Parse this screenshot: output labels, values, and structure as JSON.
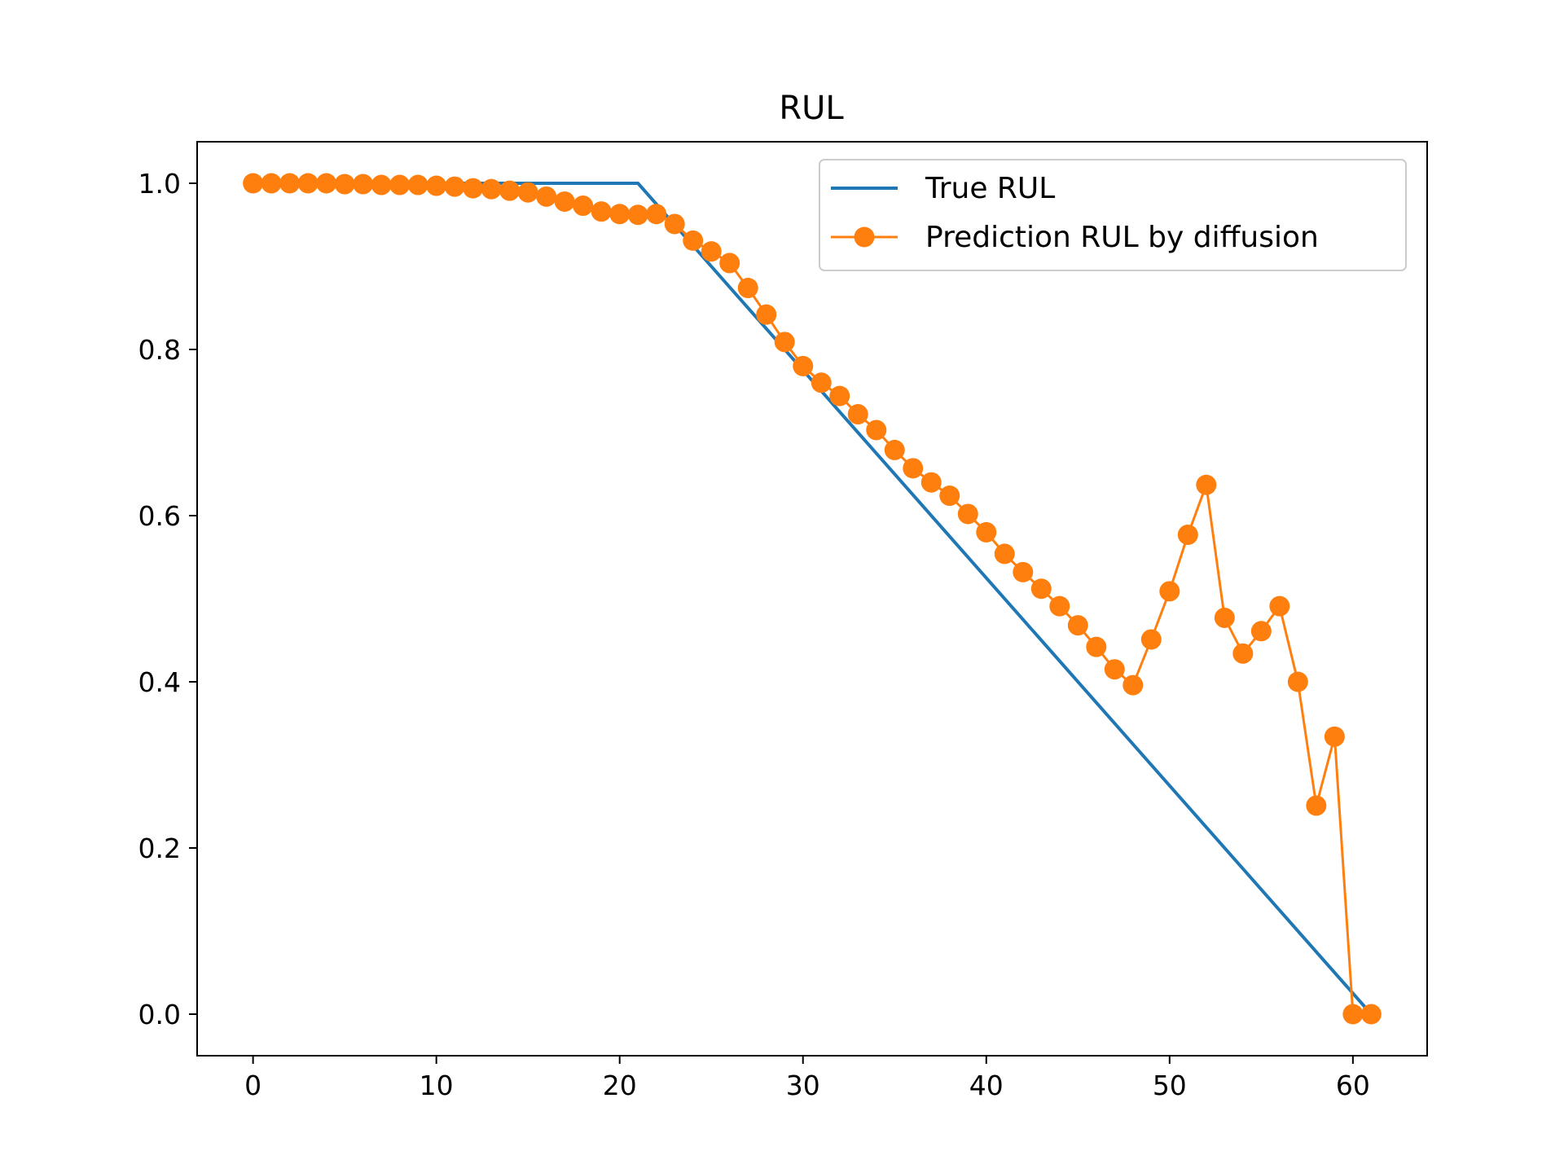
{
  "chart_data": {
    "type": "line",
    "title": "RUL",
    "xlabel": "",
    "ylabel": "",
    "xlim": [
      -3.05,
      64.05
    ],
    "ylim": [
      -0.05,
      1.05
    ],
    "xticks": [
      0,
      10,
      20,
      30,
      40,
      50,
      60
    ],
    "yticks": [
      0.0,
      0.2,
      0.4,
      0.6,
      0.8,
      1.0
    ],
    "xtick_labels": [
      "0",
      "10",
      "20",
      "30",
      "40",
      "50",
      "60"
    ],
    "ytick_labels": [
      "0.0",
      "0.2",
      "0.4",
      "0.6",
      "0.8",
      "1.0"
    ],
    "grid": false,
    "legend_position": "top-right",
    "series": [
      {
        "name": "True RUL",
        "color": "#1f77b4",
        "marker": "none",
        "x": [
          0,
          21,
          61
        ],
        "y": [
          1.0,
          1.0,
          0.0
        ]
      },
      {
        "name": "Prediction RUL by diffusion",
        "color": "#ff7f0e",
        "marker": "circle",
        "x": [
          0,
          1,
          2,
          3,
          4,
          5,
          6,
          7,
          8,
          9,
          10,
          11,
          12,
          13,
          14,
          15,
          16,
          17,
          18,
          19,
          20,
          21,
          22,
          23,
          24,
          25,
          26,
          27,
          28,
          29,
          30,
          31,
          32,
          33,
          34,
          35,
          36,
          37,
          38,
          39,
          40,
          41,
          42,
          43,
          44,
          45,
          46,
          47,
          48,
          49,
          50,
          51,
          52,
          53,
          54,
          55,
          56,
          57,
          58,
          59,
          60,
          61
        ],
        "y": [
          1.0,
          1.0,
          1.0,
          1.0,
          1.0,
          0.999,
          0.999,
          0.998,
          0.998,
          0.998,
          0.997,
          0.996,
          0.994,
          0.993,
          0.991,
          0.989,
          0.984,
          0.978,
          0.973,
          0.966,
          0.963,
          0.962,
          0.963,
          0.951,
          0.931,
          0.918,
          0.904,
          0.874,
          0.842,
          0.809,
          0.78,
          0.76,
          0.744,
          0.722,
          0.703,
          0.679,
          0.657,
          0.64,
          0.624,
          0.602,
          0.58,
          0.554,
          0.532,
          0.512,
          0.491,
          0.468,
          0.442,
          0.415,
          0.396,
          0.451,
          0.509,
          0.577,
          0.637,
          0.477,
          0.434,
          0.461,
          0.491,
          0.4,
          0.251,
          0.334,
          0.0,
          0.0
        ]
      }
    ]
  }
}
